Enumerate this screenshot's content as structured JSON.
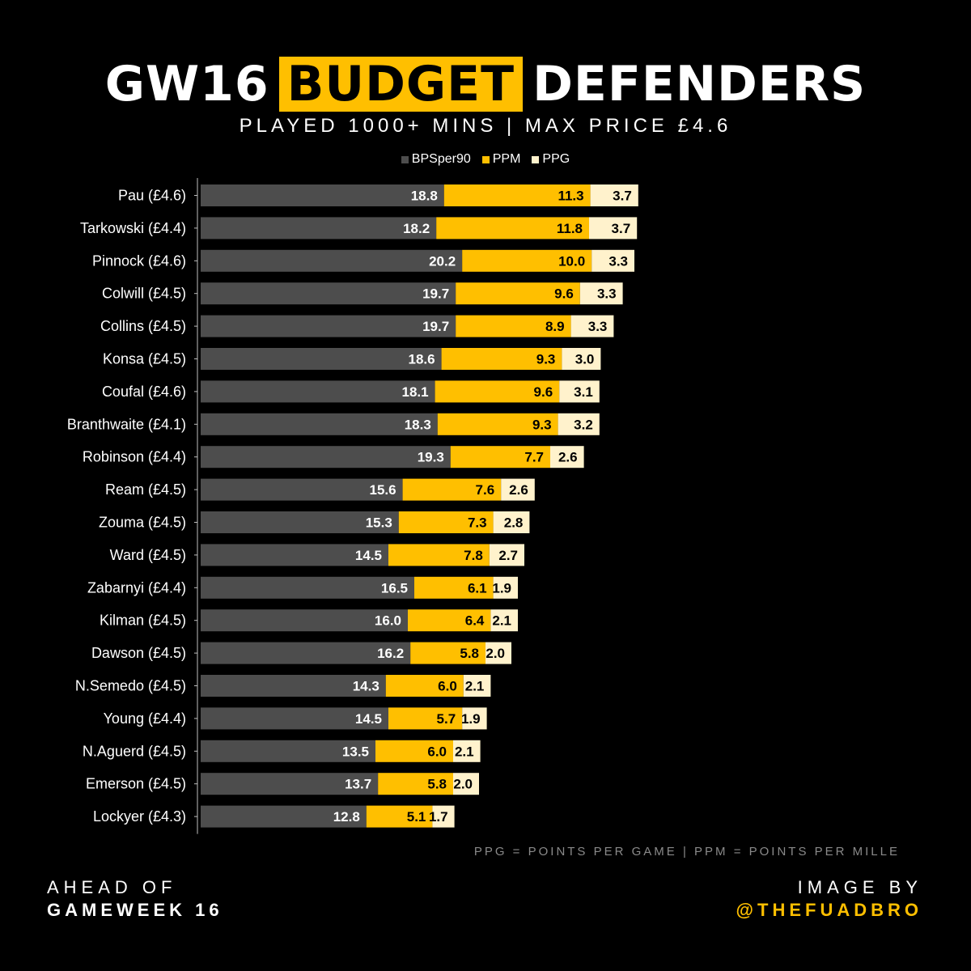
{
  "title": {
    "part1": "GW16",
    "highlight": "BUDGET",
    "part2": "DEFENDERS"
  },
  "subtitle": "PLAYED 1000+ MINS | MAX PRICE £4.6",
  "footnote": "PPG = POINTS PER GAME | PPM = POINTS PER MILLE",
  "footer": {
    "left_line1": "AHEAD OF",
    "left_line2": "GAMEWEEK 16",
    "right_line1": "IMAGE BY",
    "right_line2": "@THEFUADBRO"
  },
  "colors": {
    "BPSper90": "#4d4d4d",
    "PPM": "#ffbf00",
    "PPG": "#fff2cc",
    "accent": "#ffbf00"
  },
  "chart_data": {
    "type": "bar",
    "orientation": "horizontal",
    "stacked": true,
    "legend_position": "top-center",
    "grid": false,
    "categories": [
      "Pau (£4.6)",
      "Tarkowski (£4.4)",
      "Pinnock (£4.6)",
      "Colwill (£4.5)",
      "Collins (£4.5)",
      "Konsa (£4.5)",
      "Coufal (£4.6)",
      "Branthwaite (£4.1)",
      "Robinson (£4.4)",
      "Ream (£4.5)",
      "Zouma (£4.5)",
      "Ward (£4.5)",
      "Zabarnyi (£4.4)",
      "Kilman (£4.5)",
      "Dawson (£4.5)",
      "N.Semedo (£4.5)",
      "Young (£4.4)",
      "N.Aguerd (£4.5)",
      "Emerson (£4.5)",
      "Lockyer (£4.3)"
    ],
    "series": [
      {
        "name": "BPSper90",
        "values": [
          18.8,
          18.2,
          20.2,
          19.7,
          19.7,
          18.6,
          18.1,
          18.3,
          19.3,
          15.6,
          15.3,
          14.5,
          16.5,
          16.0,
          16.2,
          14.3,
          14.5,
          13.5,
          13.7,
          12.8
        ]
      },
      {
        "name": "PPM",
        "values": [
          11.3,
          11.8,
          10.0,
          9.6,
          8.9,
          9.3,
          9.6,
          9.3,
          7.7,
          7.6,
          7.3,
          7.8,
          6.1,
          6.4,
          5.8,
          6.0,
          5.7,
          6.0,
          5.8,
          5.1
        ]
      },
      {
        "name": "PPG",
        "values": [
          3.7,
          3.7,
          3.3,
          3.3,
          3.3,
          3.0,
          3.1,
          3.2,
          2.6,
          2.6,
          2.8,
          2.7,
          1.9,
          2.1,
          2.0,
          2.1,
          1.9,
          2.1,
          2.0,
          1.7
        ]
      }
    ]
  }
}
